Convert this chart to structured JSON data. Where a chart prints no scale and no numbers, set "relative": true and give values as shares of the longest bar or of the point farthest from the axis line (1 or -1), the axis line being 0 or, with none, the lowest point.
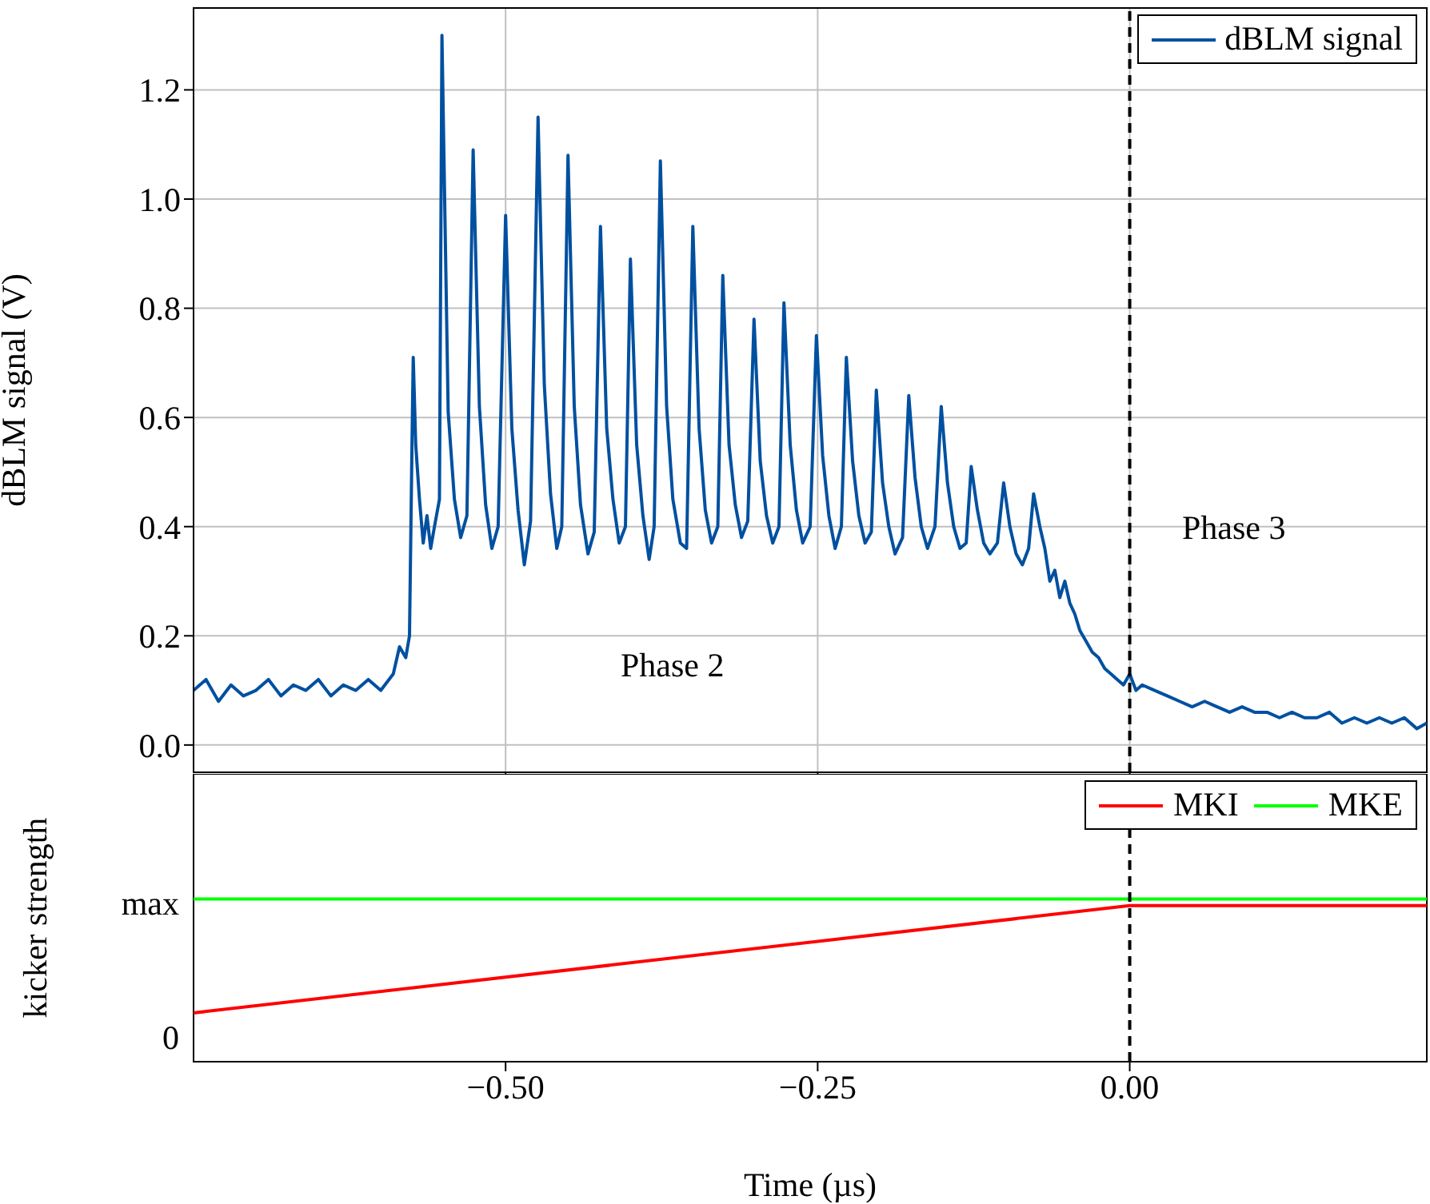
{
  "chart_data": [
    {
      "type": "line",
      "ylabel": "dBLM signal (V)",
      "xlim": [
        -0.75,
        0.238
      ],
      "ylim": [
        -0.05,
        1.35
      ],
      "xticks": [
        -0.5,
        -0.25,
        0
      ],
      "yticks": [
        {
          "value": 0,
          "label": "0.0"
        },
        0.2,
        0.4,
        0.6,
        0.8,
        {
          "value": 1,
          "label": "1.0"
        },
        1.2
      ],
      "tick_labels": "y",
      "grid": true,
      "legend": "top right",
      "line_style": "solid",
      "ref_lines": [
        {
          "axis": "x",
          "value": 0,
          "color": "#000000",
          "line_style": "dashed"
        }
      ],
      "annotations": [
        "Phase 2",
        "Phase 3"
      ],
      "series": [
        {
          "name": "dBLM signal",
          "color": "#0050a0",
          "x": [
            -0.75,
            -0.74,
            -0.73,
            -0.72,
            -0.71,
            -0.7,
            -0.69,
            -0.68,
            -0.67,
            -0.66,
            -0.65,
            -0.64,
            -0.63,
            -0.62,
            -0.61,
            -0.6,
            -0.59,
            -0.585,
            -0.58,
            -0.577,
            -0.575,
            -0.574,
            -0.572,
            -0.569,
            -0.566,
            -0.563,
            -0.56,
            -0.557,
            -0.553,
            -0.551,
            -0.546,
            -0.541,
            -0.536,
            -0.531,
            -0.526,
            -0.521,
            -0.516,
            -0.511,
            -0.506,
            -0.5,
            -0.495,
            -0.49,
            -0.485,
            -0.48,
            -0.474,
            -0.469,
            -0.464,
            -0.459,
            -0.455,
            -0.45,
            -0.445,
            -0.44,
            -0.434,
            -0.429,
            -0.424,
            -0.419,
            -0.414,
            -0.409,
            -0.404,
            -0.4,
            -0.395,
            -0.39,
            -0.385,
            -0.381,
            -0.376,
            -0.371,
            -0.366,
            -0.36,
            -0.355,
            -0.35,
            -0.345,
            -0.34,
            -0.335,
            -0.33,
            -0.326,
            -0.321,
            -0.316,
            -0.311,
            -0.306,
            -0.301,
            -0.296,
            -0.291,
            -0.286,
            -0.281,
            -0.277,
            -0.272,
            -0.267,
            -0.262,
            -0.256,
            -0.251,
            -0.246,
            -0.241,
            -0.236,
            -0.231,
            -0.227,
            -0.222,
            -0.217,
            -0.212,
            -0.207,
            -0.203,
            -0.198,
            -0.193,
            -0.188,
            -0.182,
            -0.177,
            -0.172,
            -0.167,
            -0.162,
            -0.156,
            -0.151,
            -0.146,
            -0.141,
            -0.136,
            -0.131,
            -0.127,
            -0.122,
            -0.117,
            -0.112,
            -0.106,
            -0.101,
            -0.096,
            -0.091,
            -0.086,
            -0.081,
            -0.077,
            -0.072,
            -0.068,
            -0.064,
            -0.06,
            -0.056,
            -0.052,
            -0.048,
            -0.044,
            -0.04,
            -0.035,
            -0.03,
            -0.025,
            -0.02,
            -0.015,
            -0.01,
            -0.005,
            0,
            0.005,
            0.01,
            0.02,
            0.03,
            0.04,
            0.05,
            0.06,
            0.07,
            0.08,
            0.09,
            0.1,
            0.11,
            0.12,
            0.13,
            0.14,
            0.15,
            0.16,
            0.17,
            0.18,
            0.19,
            0.2,
            0.21,
            0.22,
            0.23,
            0.238
          ],
          "values": [
            0.1,
            0.12,
            0.08,
            0.11,
            0.09,
            0.1,
            0.12,
            0.09,
            0.11,
            0.1,
            0.12,
            0.09,
            0.11,
            0.1,
            0.12,
            0.1,
            0.13,
            0.18,
            0.16,
            0.2,
            0.55,
            0.71,
            0.55,
            0.45,
            0.37,
            0.42,
            0.36,
            0.4,
            0.45,
            1.3,
            0.61,
            0.45,
            0.38,
            0.42,
            1.09,
            0.62,
            0.44,
            0.36,
            0.4,
            0.97,
            0.58,
            0.43,
            0.33,
            0.41,
            1.15,
            0.66,
            0.46,
            0.36,
            0.4,
            1.08,
            0.62,
            0.44,
            0.35,
            0.39,
            0.95,
            0.58,
            0.45,
            0.37,
            0.4,
            0.89,
            0.55,
            0.42,
            0.34,
            0.4,
            1.07,
            0.62,
            0.45,
            0.37,
            0.36,
            0.95,
            0.58,
            0.43,
            0.37,
            0.4,
            0.86,
            0.55,
            0.44,
            0.38,
            0.41,
            0.78,
            0.52,
            0.42,
            0.37,
            0.4,
            0.81,
            0.55,
            0.43,
            0.37,
            0.4,
            0.75,
            0.53,
            0.42,
            0.36,
            0.4,
            0.71,
            0.52,
            0.42,
            0.37,
            0.39,
            0.65,
            0.48,
            0.4,
            0.35,
            0.38,
            0.64,
            0.49,
            0.4,
            0.36,
            0.4,
            0.62,
            0.48,
            0.4,
            0.36,
            0.37,
            0.51,
            0.43,
            0.37,
            0.35,
            0.37,
            0.48,
            0.4,
            0.35,
            0.33,
            0.36,
            0.46,
            0.4,
            0.36,
            0.3,
            0.32,
            0.27,
            0.3,
            0.26,
            0.24,
            0.21,
            0.19,
            0.17,
            0.16,
            0.14,
            0.13,
            0.12,
            0.11,
            0.13,
            0.1,
            0.11,
            0.1,
            0.09,
            0.08,
            0.07,
            0.08,
            0.07,
            0.06,
            0.07,
            0.06,
            0.06,
            0.05,
            0.06,
            0.05,
            0.05,
            0.06,
            0.04,
            0.05,
            0.04,
            0.05,
            0.04,
            0.05,
            0.03,
            0.04
          ]
        }
      ]
    },
    {
      "type": "line",
      "xlabel": "Time (µs)",
      "ylabel": "kicker strength",
      "xlim": [
        -0.75,
        0.238
      ],
      "relative": true,
      "annotations": [
        "0",
        "max"
      ],
      "xticks": [
        {
          "value": -0.5,
          "label": "−0.50"
        },
        {
          "value": -0.25,
          "label": "−0.25"
        },
        {
          "value": 0,
          "label": "0.00"
        }
      ],
      "legend": "top right",
      "line_style": "solid",
      "ref_lines": [
        {
          "axis": "x",
          "value": 0,
          "color": "#000000",
          "line_style": "dashed"
        }
      ],
      "series": [
        {
          "name": "MKI",
          "color": "#ff0000",
          "x": [
            -0.75,
            0,
            0.238
          ],
          "values": [
            0.3,
            0.96,
            0.96
          ]
        },
        {
          "name": "MKE",
          "color": "#00ff00",
          "x": [
            -0.75,
            0.238
          ],
          "values": [
            1,
            1
          ]
        }
      ]
    }
  ]
}
